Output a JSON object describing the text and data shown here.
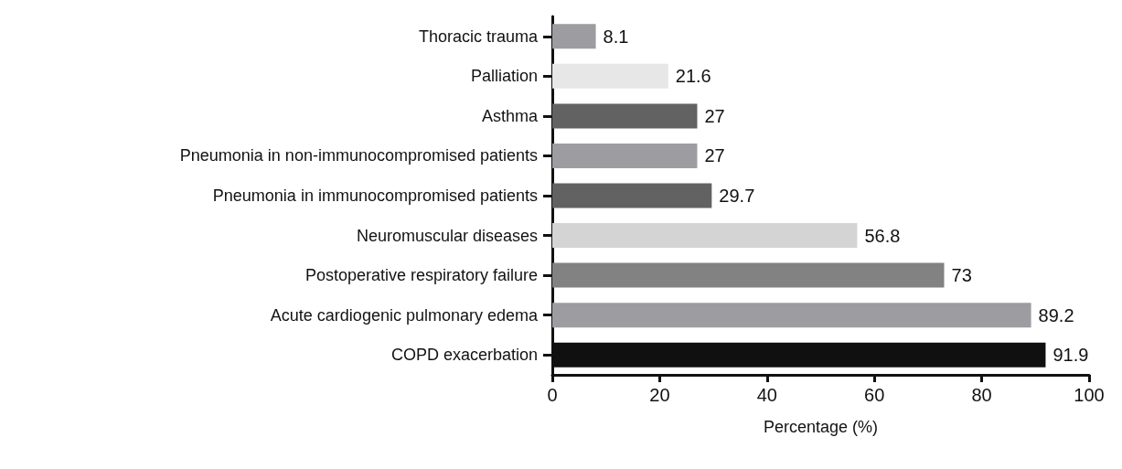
{
  "chart_data": {
    "type": "bar",
    "orientation": "horizontal",
    "xlabel": "Percentage (%)",
    "categories": [
      "Thoracic trauma",
      "Palliation",
      "Asthma",
      "Pneumonia in non-immunocompromised patients",
      "Pneumonia in immunocompromised patients",
      "Neuromuscular diseases",
      "Postoperative respiratory failure",
      "Acute cardiogenic pulmonary edema",
      "COPD exacerbation"
    ],
    "values": [
      8.1,
      21.6,
      27,
      27,
      29.7,
      56.8,
      73,
      89.2,
      91.9
    ],
    "colors": [
      "#9d9ca1",
      "#e6e7e6",
      "#626262",
      "#9d9ca1",
      "#626262",
      "#d4d4d4",
      "#828282",
      "#9d9ca1",
      "#101010"
    ],
    "xlim": [
      0,
      100
    ],
    "xticks": [
      0,
      20,
      40,
      60,
      80,
      100
    ],
    "data_labels": true,
    "grid": false
  }
}
